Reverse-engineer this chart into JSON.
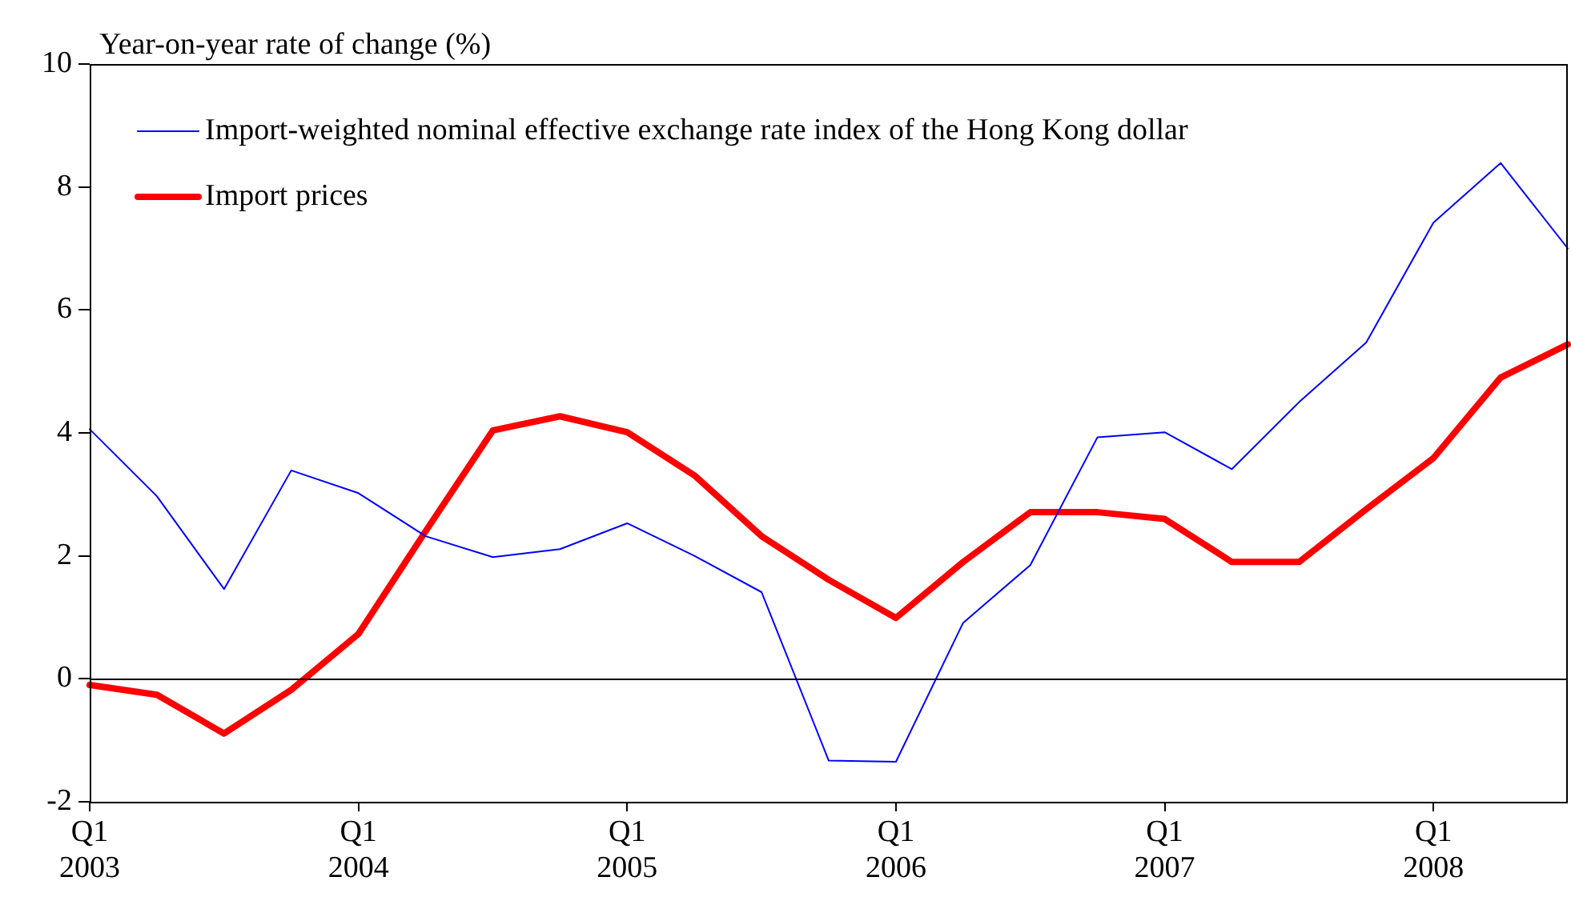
{
  "chart_data": {
    "type": "line",
    "ylabel": "Year-on-year rate of change (%)",
    "categories": [
      "Q1\n2003",
      null,
      null,
      null,
      "Q1\n2004",
      null,
      null,
      null,
      "Q1\n2005",
      null,
      null,
      null,
      "Q1\n2006",
      null,
      null,
      null,
      "Q1\n2007",
      null,
      null,
      null,
      "Q1\n2008",
      null,
      null
    ],
    "series": [
      {
        "name": "Import-weighted nominal effective exchange rate index of the Hong Kong dollar",
        "color": "#0000ff",
        "values": [
          4.06,
          2.97,
          1.46,
          3.39,
          3.02,
          2.32,
          1.98,
          2.11,
          2.53,
          2.0,
          1.41,
          -1.33,
          -1.35,
          0.91,
          1.85,
          3.93,
          4.01,
          3.41,
          4.5,
          5.47,
          7.42,
          8.39,
          7.0
        ]
      },
      {
        "name": "Import prices",
        "color": "#ff0000",
        "values": [
          -0.1,
          -0.26,
          -0.89,
          -0.18,
          0.73,
          2.4,
          4.04,
          4.27,
          4.01,
          3.31,
          2.32,
          1.61,
          0.99,
          1.9,
          2.71,
          2.71,
          2.6,
          1.9,
          1.9,
          2.76,
          3.59,
          4.9,
          5.44
        ]
      }
    ],
    "ylim": [
      -2,
      10
    ],
    "yticks": [
      -2,
      0,
      2,
      4,
      6,
      8,
      10
    ],
    "ref_lines": [
      {
        "axis": "y",
        "value": 0,
        "color": "#000000"
      }
    ],
    "grid": false,
    "legend": "top left",
    "marker": "none",
    "line_style": "solid"
  }
}
